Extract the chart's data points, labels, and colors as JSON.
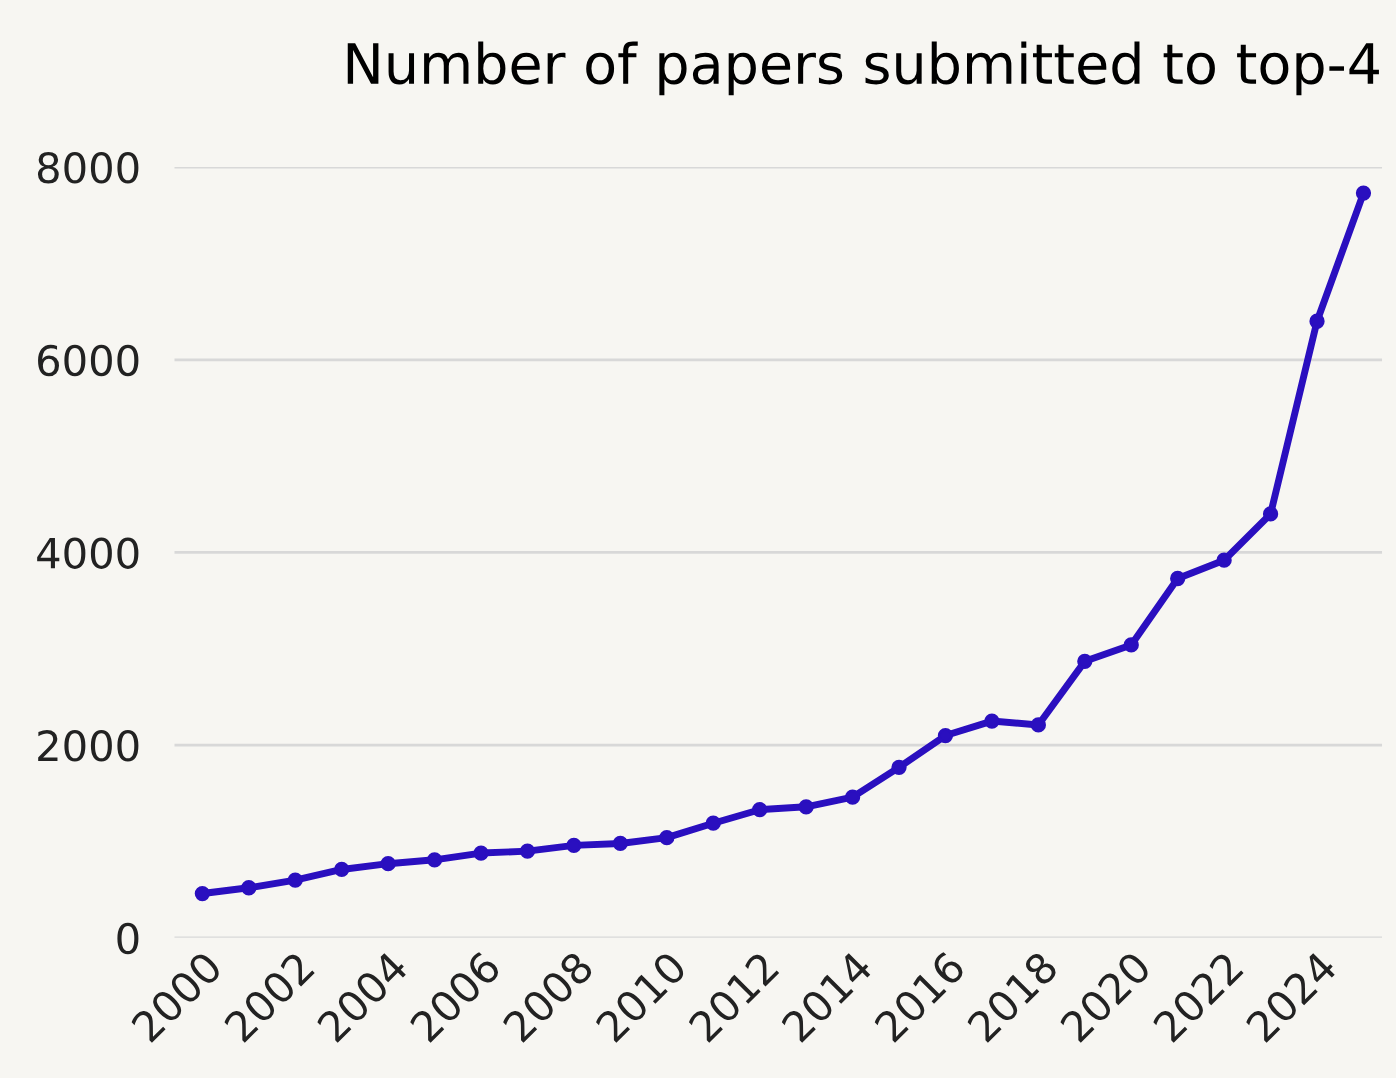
{
  "chart_data": {
    "type": "line",
    "title": "Number of papers submitted to top-4",
    "x": [
      2000,
      2001,
      2002,
      2003,
      2004,
      2005,
      2006,
      2007,
      2008,
      2009,
      2010,
      2011,
      2012,
      2013,
      2014,
      2015,
      2016,
      2017,
      2018,
      2019,
      2020,
      2021,
      2022,
      2023,
      2024,
      2025
    ],
    "series": [
      {
        "color": "#2a0fbf",
        "values": [
          460,
          520,
          600,
          710,
          770,
          810,
          880,
          900,
          960,
          980,
          1040,
          1190,
          1330,
          1360,
          1460,
          1770,
          2100,
          2250,
          2210,
          2870,
          3040,
          3730,
          3920,
          4400,
          6400,
          7730
        ]
      }
    ],
    "xlim": [
      1999.4,
      2025.4
    ],
    "ylim": [
      0,
      8000
    ],
    "xticks": [
      2000,
      2002,
      2004,
      2006,
      2008,
      2010,
      2012,
      2014,
      2016,
      2018,
      2020,
      2022,
      2024
    ],
    "yticks": [
      0,
      2000,
      4000,
      6000,
      8000
    ],
    "grid": "y",
    "marker": "circle",
    "line_style": "solid"
  }
}
